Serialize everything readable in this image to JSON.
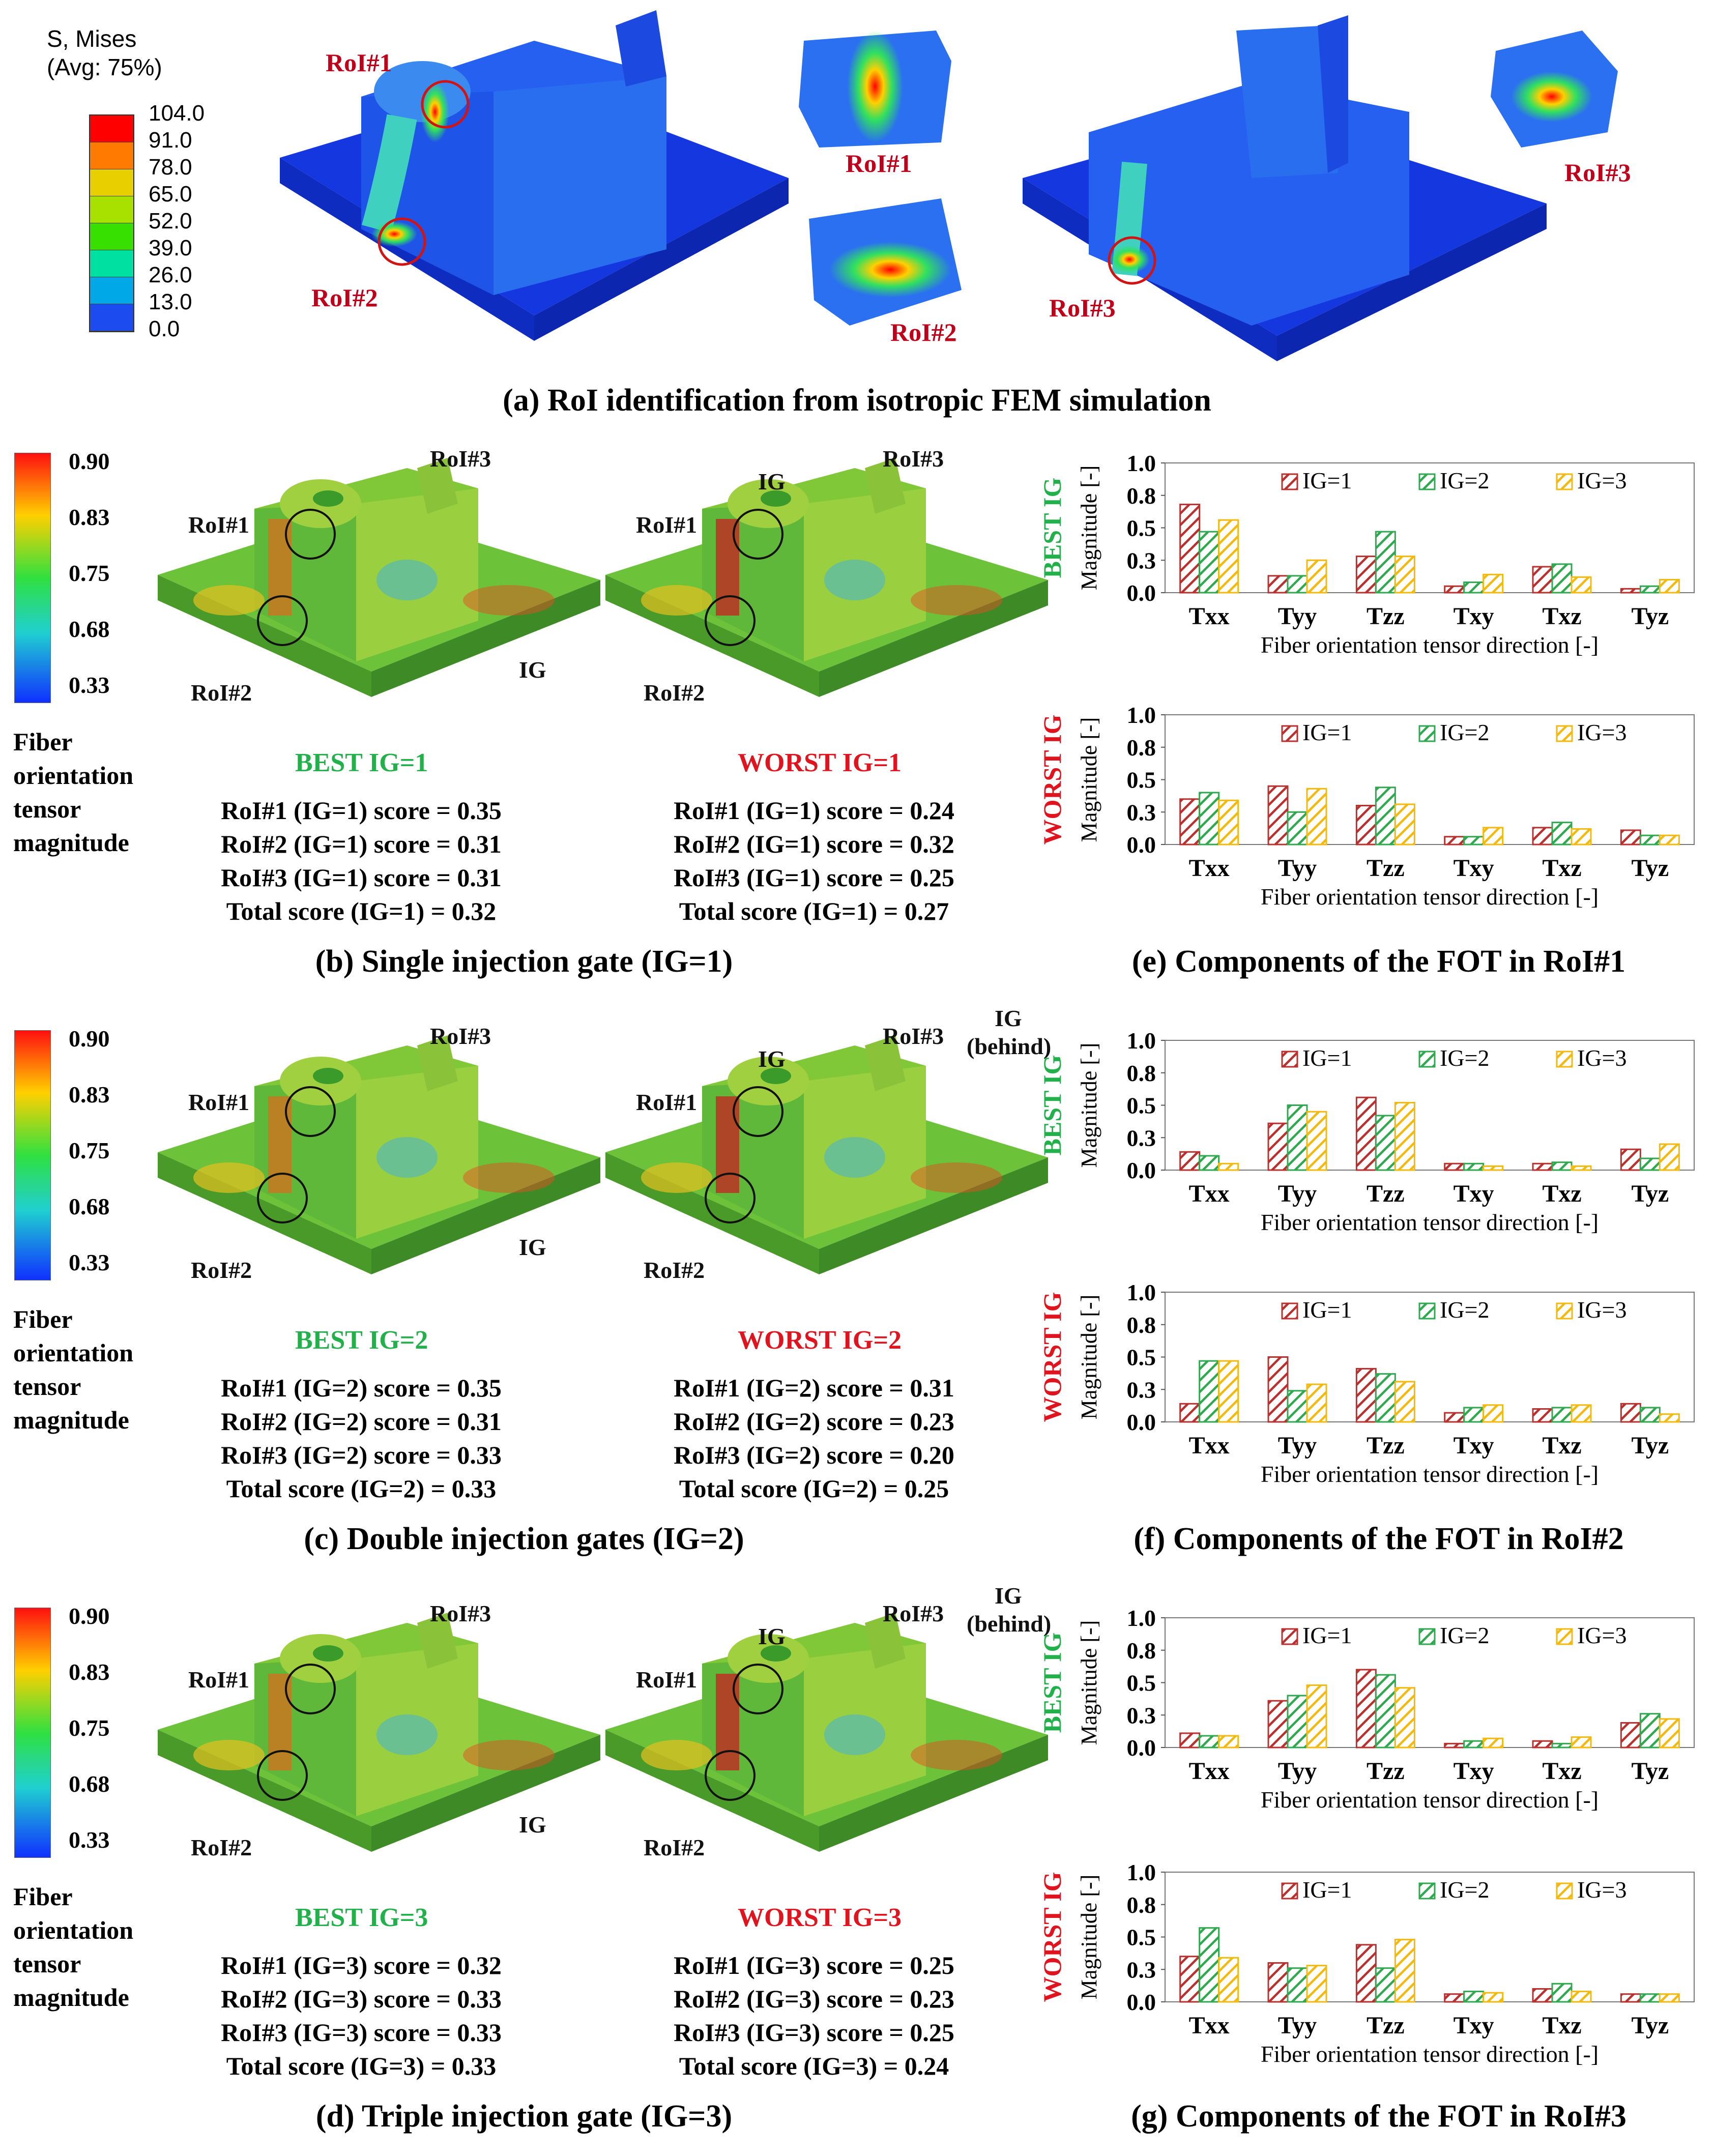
{
  "panel_a": {
    "legend_title_1": "S, Mises",
    "legend_title_2": "(Avg: 75%)",
    "legend_values": [
      "104.0",
      "91.0",
      "78.0",
      "65.0",
      "52.0",
      "39.0",
      "26.0",
      "13.0",
      "0.0"
    ],
    "legend_colors": [
      "#ff0000",
      "#ff7a00",
      "#e8d000",
      "#a8e000",
      "#38e000",
      "#00e0a0",
      "#00a8e8",
      "#1c4cf0"
    ],
    "roi1": "RoI#1",
    "roi2": "RoI#2",
    "roi3": "RoI#3",
    "caption": "(a) RoI identification from isotropic FEM simulation"
  },
  "colorbar": {
    "ticks": [
      "0.90",
      "0.83",
      "0.75",
      "0.68",
      "0.33"
    ],
    "label_lines": [
      "Fiber",
      "orientation",
      "tensor",
      "magnitude"
    ]
  },
  "rows": [
    {
      "best_title": "BEST IG=1",
      "worst_title": "WORST IG=1",
      "best_scores": [
        "RoI#1 (IG=1) score = 0.35",
        "RoI#2 (IG=1) score = 0.31",
        "RoI#3 (IG=1) score = 0.31",
        "Total score (IG=1) = 0.32"
      ],
      "worst_scores": [
        "RoI#1 (IG=1) score = 0.24",
        "RoI#2 (IG=1) score = 0.32",
        "RoI#3 (IG=1) score = 0.25",
        "Total score (IG=1) = 0.27"
      ],
      "caption": "(b) Single injection gate (IG=1)",
      "chart_caption": "(e) Components of the FOT in RoI#1"
    },
    {
      "best_title": "BEST IG=2",
      "worst_title": "WORST IG=2",
      "best_scores": [
        "RoI#1 (IG=2) score = 0.35",
        "RoI#2 (IG=2) score = 0.31",
        "RoI#3 (IG=2) score = 0.33",
        "Total score (IG=2) = 0.33"
      ],
      "worst_scores": [
        "RoI#1 (IG=2) score = 0.31",
        "RoI#2 (IG=2) score = 0.23",
        "RoI#3 (IG=2) score = 0.20",
        "Total score (IG=2) = 0.25"
      ],
      "caption": "(c) Double injection gates (IG=2)",
      "chart_caption": "(f) Components of the FOT in RoI#2"
    },
    {
      "best_title": "BEST IG=3",
      "worst_title": "WORST IG=3",
      "best_scores": [
        "RoI#1 (IG=3) score = 0.32",
        "RoI#2 (IG=3) score = 0.33",
        "RoI#3 (IG=3) score = 0.33",
        "Total score (IG=3) = 0.33"
      ],
      "worst_scores": [
        "RoI#1 (IG=3) score = 0.25",
        "RoI#2 (IG=3) score = 0.23",
        "RoI#3 (IG=3) score = 0.25",
        "Total score (IG=3) = 0.24"
      ],
      "caption": "(d) Triple injection gate (IG=3)",
      "chart_caption": "(g) Components of the FOT in RoI#3"
    }
  ],
  "model_labels": {
    "roi1": "RoI#1",
    "roi2": "RoI#2",
    "roi3": "RoI#3",
    "ig": "IG",
    "ig_behind_1": "IG",
    "ig_behind_2": "(behind)"
  },
  "colors": {
    "ig1": "#b8312f",
    "ig2": "#2fa84f",
    "ig3": "#f2b90f",
    "best": "#22b04a",
    "worst": "#e0141e"
  },
  "chart_data": [
    {
      "type": "bar",
      "title": "BEST IG",
      "roi": "RoI#1",
      "categories": [
        "Txx",
        "Tyy",
        "Tzz",
        "Txy",
        "Txz",
        "Tyz"
      ],
      "series": [
        {
          "name": "IG=1",
          "values": [
            0.68,
            0.13,
            0.28,
            0.05,
            0.2,
            0.03
          ]
        },
        {
          "name": "IG=2",
          "values": [
            0.47,
            0.13,
            0.47,
            0.08,
            0.22,
            0.05
          ]
        },
        {
          "name": "IG=3",
          "values": [
            0.56,
            0.25,
            0.28,
            0.14,
            0.12,
            0.1
          ]
        }
      ],
      "ylabel": "Magnitude [-]",
      "xlabel": "Fiber orientation tensor direction [-]",
      "ylim": [
        0,
        1.0
      ],
      "yticks": [
        "0.0",
        "0.3",
        "0.5",
        "0.8",
        "1.0"
      ]
    },
    {
      "type": "bar",
      "title": "WORST IG",
      "roi": "RoI#1",
      "categories": [
        "Txx",
        "Tyy",
        "Tzz",
        "Txy",
        "Txz",
        "Tyz"
      ],
      "series": [
        {
          "name": "IG=1",
          "values": [
            0.35,
            0.45,
            0.3,
            0.06,
            0.13,
            0.11
          ]
        },
        {
          "name": "IG=2",
          "values": [
            0.4,
            0.25,
            0.44,
            0.06,
            0.17,
            0.07
          ]
        },
        {
          "name": "IG=3",
          "values": [
            0.34,
            0.43,
            0.31,
            0.13,
            0.12,
            0.07
          ]
        }
      ],
      "ylabel": "Magnitude [-]",
      "xlabel": "Fiber orientation tensor direction [-]",
      "ylim": [
        0,
        1.0
      ],
      "yticks": [
        "0.0",
        "0.3",
        "0.5",
        "0.8",
        "1.0"
      ]
    },
    {
      "type": "bar",
      "title": "BEST IG",
      "roi": "RoI#2",
      "categories": [
        "Txx",
        "Tyy",
        "Tzz",
        "Txy",
        "Txz",
        "Tyz"
      ],
      "series": [
        {
          "name": "IG=1",
          "values": [
            0.14,
            0.36,
            0.56,
            0.05,
            0.05,
            0.16
          ]
        },
        {
          "name": "IG=2",
          "values": [
            0.11,
            0.5,
            0.42,
            0.05,
            0.06,
            0.09
          ]
        },
        {
          "name": "IG=3",
          "values": [
            0.05,
            0.45,
            0.52,
            0.03,
            0.03,
            0.2
          ]
        }
      ],
      "ylabel": "Magnitude [-]",
      "xlabel": "Fiber orientation tensor direction [-]",
      "ylim": [
        0,
        1.0
      ],
      "yticks": [
        "0.0",
        "0.3",
        "0.5",
        "0.8",
        "1.0"
      ]
    },
    {
      "type": "bar",
      "title": "WORST IG",
      "roi": "RoI#2",
      "categories": [
        "Txx",
        "Tyy",
        "Tzz",
        "Txy",
        "Txz",
        "Tyz"
      ],
      "series": [
        {
          "name": "IG=1",
          "values": [
            0.14,
            0.5,
            0.41,
            0.07,
            0.1,
            0.14
          ]
        },
        {
          "name": "IG=2",
          "values": [
            0.47,
            0.24,
            0.37,
            0.11,
            0.11,
            0.11
          ]
        },
        {
          "name": "IG=3",
          "values": [
            0.47,
            0.29,
            0.31,
            0.13,
            0.13,
            0.06
          ]
        }
      ],
      "ylabel": "Magnitude [-]",
      "xlabel": "Fiber orientation tensor direction [-]",
      "ylim": [
        0,
        1.0
      ],
      "yticks": [
        "0.0",
        "0.3",
        "0.5",
        "0.8",
        "1.0"
      ]
    },
    {
      "type": "bar",
      "title": "BEST IG",
      "roi": "RoI#3",
      "categories": [
        "Txx",
        "Tyy",
        "Tzz",
        "Txy",
        "Txz",
        "Tyz"
      ],
      "series": [
        {
          "name": "IG=1",
          "values": [
            0.11,
            0.36,
            0.6,
            0.03,
            0.05,
            0.19
          ]
        },
        {
          "name": "IG=2",
          "values": [
            0.09,
            0.4,
            0.56,
            0.05,
            0.03,
            0.26
          ]
        },
        {
          "name": "IG=3",
          "values": [
            0.09,
            0.48,
            0.46,
            0.07,
            0.08,
            0.22
          ]
        }
      ],
      "ylabel": "Magnitude [-]",
      "xlabel": "Fiber orientation tensor direction [-]",
      "ylim": [
        0,
        1.0
      ],
      "yticks": [
        "0.0",
        "0.3",
        "0.5",
        "0.8",
        "1.0"
      ]
    },
    {
      "type": "bar",
      "title": "WORST IG",
      "roi": "RoI#3",
      "categories": [
        "Txx",
        "Tyy",
        "Tzz",
        "Txy",
        "Txz",
        "Tyz"
      ],
      "series": [
        {
          "name": "IG=1",
          "values": [
            0.35,
            0.3,
            0.44,
            0.06,
            0.1,
            0.06
          ]
        },
        {
          "name": "IG=2",
          "values": [
            0.57,
            0.26,
            0.26,
            0.08,
            0.14,
            0.06
          ]
        },
        {
          "name": "IG=3",
          "values": [
            0.34,
            0.28,
            0.48,
            0.07,
            0.08,
            0.06
          ]
        }
      ],
      "ylabel": "Magnitude [-]",
      "xlabel": "Fiber orientation tensor direction [-]",
      "ylim": [
        0,
        1.0
      ],
      "yticks": [
        "0.0",
        "0.3",
        "0.5",
        "0.8",
        "1.0"
      ]
    }
  ]
}
